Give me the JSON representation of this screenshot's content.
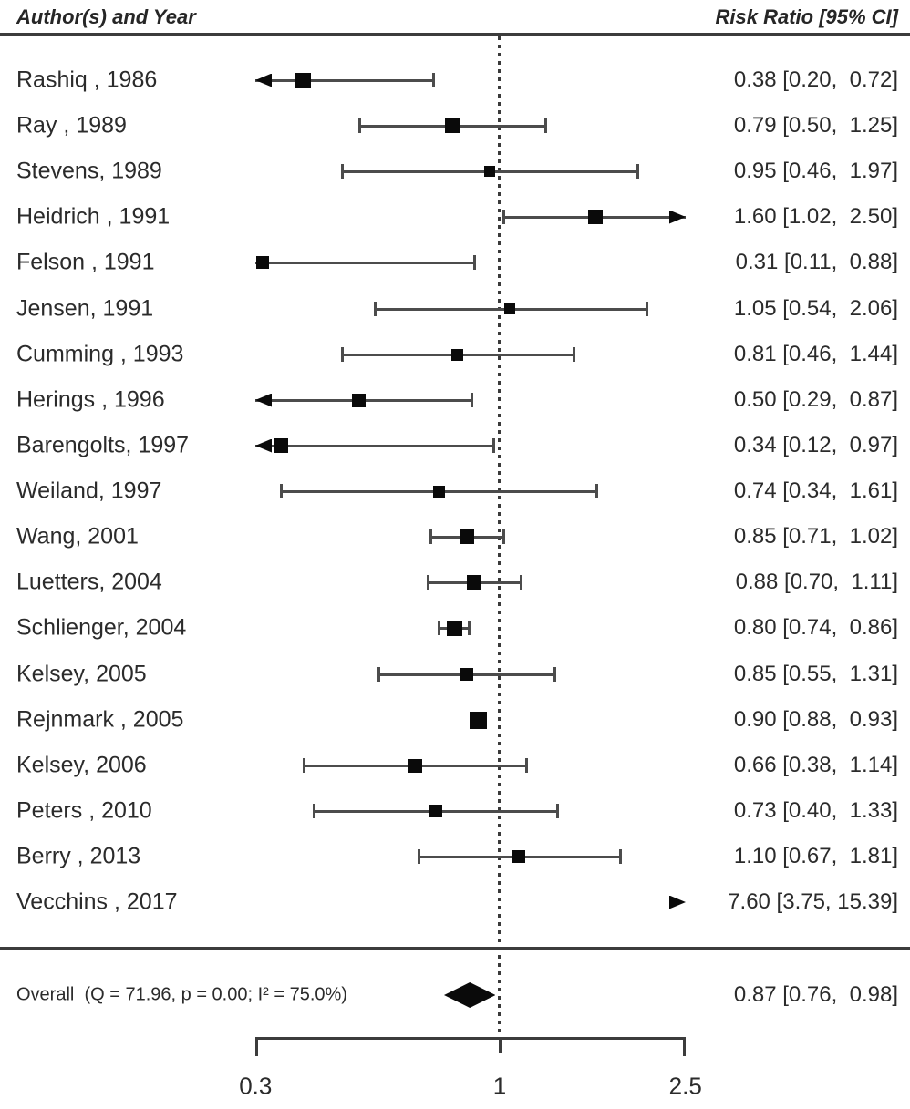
{
  "header": {
    "left_label": "Author(s) and Year",
    "right_label": "Risk Ratio [95% CI]"
  },
  "colors": {
    "marker": "#0a0a0a",
    "line": "#4c4c4c",
    "text": "#2b2b2b",
    "background": "#ffffff"
  },
  "chart_data": {
    "type": "forest",
    "title": "",
    "xlabel": "",
    "x_scale": "log",
    "x_range": [
      0.3,
      2.5
    ],
    "x_ticks": [
      0.3,
      1,
      2.5
    ],
    "x_tick_labels": [
      "0.3",
      "1",
      "2.5"
    ],
    "reference_line": 1,
    "columns": [
      "Author(s) and Year",
      "Risk Ratio [95% CI]"
    ],
    "studies": [
      {
        "label": "Rashiq , 1986",
        "estimate": 0.38,
        "ci_low": 0.2,
        "ci_high": 0.72,
        "value_text": "0.38 [0.20,  0.72]",
        "marker": 17
      },
      {
        "label": "Ray , 1989",
        "estimate": 0.79,
        "ci_low": 0.5,
        "ci_high": 1.25,
        "value_text": "0.79 [0.50,  1.25]",
        "marker": 16
      },
      {
        "label": "Stevens, 1989",
        "estimate": 0.95,
        "ci_low": 0.46,
        "ci_high": 1.97,
        "value_text": "0.95 [0.46,  1.97]",
        "marker": 12
      },
      {
        "label": "Heidrich , 1991",
        "estimate": 1.6,
        "ci_low": 1.02,
        "ci_high": 2.5,
        "value_text": "1.60 [1.02,  2.50]",
        "marker": 16
      },
      {
        "label": "Felson , 1991",
        "estimate": 0.31,
        "ci_low": 0.11,
        "ci_high": 0.88,
        "value_text": "0.31 [0.11,  0.88]",
        "marker": 14
      },
      {
        "label": "Jensen, 1991",
        "estimate": 1.05,
        "ci_low": 0.54,
        "ci_high": 2.06,
        "value_text": "1.05 [0.54,  2.06]",
        "marker": 12
      },
      {
        "label": "Cumming , 1993",
        "estimate": 0.81,
        "ci_low": 0.46,
        "ci_high": 1.44,
        "value_text": "0.81 [0.46,  1.44]",
        "marker": 13
      },
      {
        "label": "Herings , 1996",
        "estimate": 0.5,
        "ci_low": 0.29,
        "ci_high": 0.87,
        "value_text": "0.50 [0.29,  0.87]",
        "marker": 15
      },
      {
        "label": "Barengolts, 1997",
        "estimate": 0.34,
        "ci_low": 0.12,
        "ci_high": 0.97,
        "value_text": "0.34 [0.12,  0.97]",
        "marker": 16
      },
      {
        "label": "Weiland, 1997",
        "estimate": 0.74,
        "ci_low": 0.34,
        "ci_high": 1.61,
        "value_text": "0.74 [0.34,  1.61]",
        "marker": 13
      },
      {
        "label": "Wang, 2001",
        "estimate": 0.85,
        "ci_low": 0.71,
        "ci_high": 1.02,
        "value_text": "0.85 [0.71,  1.02]",
        "marker": 16
      },
      {
        "label": "Luetters, 2004",
        "estimate": 0.88,
        "ci_low": 0.7,
        "ci_high": 1.11,
        "value_text": "0.88 [0.70,  1.11]",
        "marker": 16
      },
      {
        "label": "Schlienger, 2004",
        "estimate": 0.8,
        "ci_low": 0.74,
        "ci_high": 0.86,
        "value_text": "0.80 [0.74,  0.86]",
        "marker": 17
      },
      {
        "label": "Kelsey, 2005",
        "estimate": 0.85,
        "ci_low": 0.55,
        "ci_high": 1.31,
        "value_text": "0.85 [0.55,  1.31]",
        "marker": 14
      },
      {
        "label": "Rejnmark , 2005",
        "estimate": 0.9,
        "ci_low": 0.88,
        "ci_high": 0.93,
        "value_text": "0.90 [0.88,  0.93]",
        "marker": 19
      },
      {
        "label": "Kelsey, 2006",
        "estimate": 0.66,
        "ci_low": 0.38,
        "ci_high": 1.14,
        "value_text": "0.66 [0.38,  1.14]",
        "marker": 15
      },
      {
        "label": "Peters , 2010",
        "estimate": 0.73,
        "ci_low": 0.4,
        "ci_high": 1.33,
        "value_text": "0.73 [0.40,  1.33]",
        "marker": 14
      },
      {
        "label": "Berry , 2013",
        "estimate": 1.1,
        "ci_low": 0.67,
        "ci_high": 1.81,
        "value_text": "1.10 [0.67,  1.81]",
        "marker": 14
      },
      {
        "label": "Vecchins , 2017",
        "estimate": 7.6,
        "ci_low": 3.75,
        "ci_high": 15.39,
        "value_text": "7.60 [3.75, 15.39]",
        "marker": 0
      }
    ],
    "overall": {
      "label": "Overall  (Q = 71.96, p = 0.00; I² = 75.0%)",
      "estimate": 0.87,
      "ci_low": 0.76,
      "ci_high": 0.98,
      "value_text": "0.87 [0.76,  0.98]",
      "heterogeneity": {
        "Q": 71.96,
        "p": 0.0,
        "I2_percent": 75.0
      }
    }
  }
}
